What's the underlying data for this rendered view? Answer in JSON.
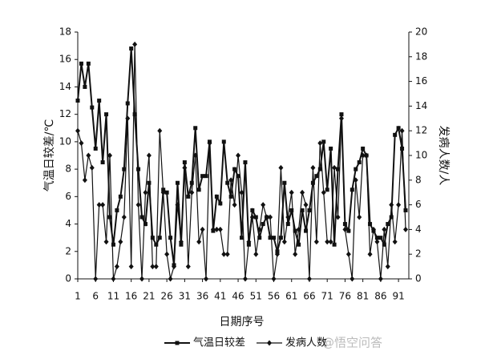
{
  "chart_data": {
    "type": "line",
    "x_label": "日期序号",
    "y_label": "气温日较差/℃",
    "y2_label": "发病人数/人",
    "x": [
      1,
      2,
      3,
      4,
      5,
      6,
      7,
      8,
      9,
      10,
      11,
      12,
      13,
      14,
      15,
      16,
      17,
      18,
      19,
      20,
      21,
      22,
      23,
      24,
      25,
      26,
      27,
      28,
      29,
      30,
      31,
      32,
      33,
      34,
      35,
      36,
      37,
      38,
      39,
      40,
      41,
      42,
      43,
      44,
      45,
      46,
      47,
      48,
      49,
      50,
      51,
      52,
      53,
      54,
      55,
      56,
      57,
      58,
      59,
      60,
      61,
      62,
      63,
      64,
      65,
      66,
      67,
      68,
      69,
      70,
      71,
      72,
      73,
      74,
      75,
      76,
      77,
      78,
      79,
      80,
      81,
      82,
      83,
      84,
      85,
      86,
      87,
      88,
      89,
      90,
      91,
      92,
      93
    ],
    "xlim": [
      1,
      93
    ],
    "xticks": [
      1,
      6,
      11,
      16,
      21,
      26,
      31,
      36,
      41,
      46,
      51,
      56,
      61,
      66,
      71,
      76,
      81,
      86,
      91
    ],
    "ylim": [
      0,
      18
    ],
    "yticks": [
      0,
      2,
      4,
      6,
      8,
      10,
      12,
      14,
      16,
      18
    ],
    "y2lim": [
      0,
      20
    ],
    "y2ticks": [
      0,
      2,
      4,
      6,
      8,
      10,
      12,
      14,
      16,
      18,
      20
    ],
    "legend": "bottom",
    "series": [
      {
        "name": "气温日较差",
        "color": "#111111",
        "marker": "square",
        "values": [
          13,
          15.7,
          14,
          15.7,
          12.5,
          9.5,
          13,
          8.5,
          12,
          4.5,
          2.5,
          5,
          6,
          8,
          12.8,
          16.8,
          12,
          8,
          4.5,
          4,
          7,
          3,
          2.5,
          3,
          6.5,
          6.3,
          3,
          1,
          7,
          2.5,
          8.5,
          6,
          7,
          11,
          6.5,
          7.5,
          7.5,
          10,
          3.5,
          6,
          5.5,
          10,
          7,
          6,
          8,
          7.5,
          3,
          8.5,
          2.5,
          5,
          4.5,
          3,
          4,
          4.5,
          3,
          3,
          2,
          3,
          7,
          4,
          5,
          3.5,
          2.5,
          5,
          3.5,
          5,
          7,
          7.5,
          8,
          10,
          6.5,
          9.5,
          2.5,
          8,
          12,
          4,
          3.5,
          6.5,
          8,
          8.5,
          9.5,
          9,
          4,
          3.5,
          3,
          3,
          2.5,
          4,
          4.5,
          10.5,
          11,
          9.5,
          5
        ]
      },
      {
        "name": "发病人数",
        "color": "#111111",
        "marker": "diamond",
        "axis": "y2",
        "values": [
          12,
          11,
          8,
          10,
          9,
          0,
          6,
          6,
          3,
          10,
          0,
          1,
          3,
          5,
          13,
          1,
          19,
          6,
          0,
          7,
          10,
          1,
          1,
          12,
          7,
          2,
          0,
          1,
          6,
          3,
          9,
          1,
          7,
          10,
          3,
          4,
          0,
          11,
          4,
          4,
          4,
          2,
          2,
          8,
          6,
          10,
          7,
          0,
          3,
          5,
          2,
          4,
          6,
          5,
          5,
          0,
          2,
          9,
          3,
          5,
          7,
          2,
          4,
          7,
          6,
          0,
          9,
          3,
          11,
          7,
          3,
          3,
          9,
          5,
          13,
          4,
          2,
          0,
          8,
          5,
          10,
          10,
          2,
          4,
          3,
          0,
          4,
          1,
          6,
          3,
          6,
          12,
          4
        ]
      }
    ]
  },
  "watermark": "@悟空问答"
}
